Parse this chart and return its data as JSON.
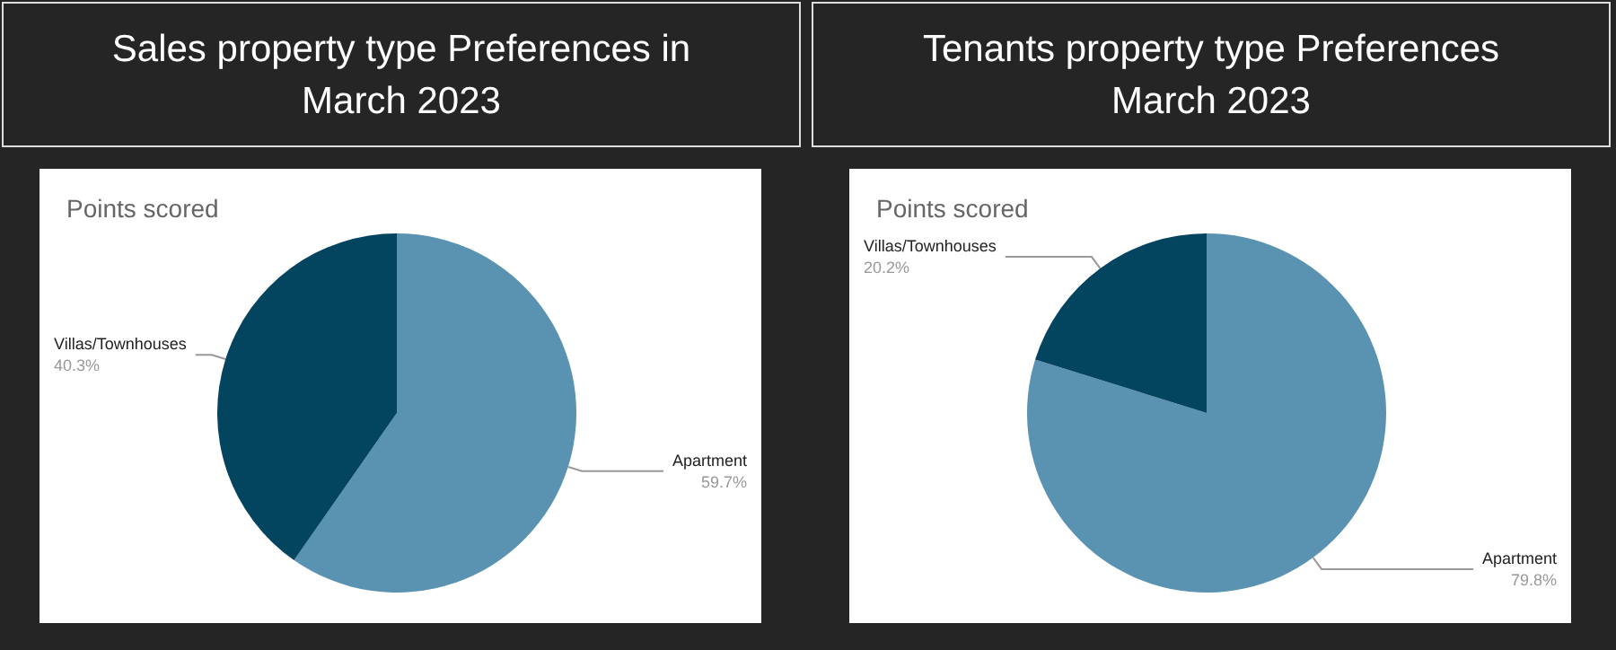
{
  "chart_data": [
    {
      "type": "pie",
      "title": "Sales property type Preferences in March 2023",
      "subtitle": "Points scored",
      "categories": [
        "Apartment",
        "Villas/Townhouses"
      ],
      "values": [
        59.7,
        40.3
      ],
      "value_labels": [
        "59.7%",
        "40.3%"
      ],
      "colors": [
        "#5a93b1",
        "#03445f"
      ],
      "legend": false
    },
    {
      "type": "pie",
      "title": "Tenants property type Preferences March 2023",
      "subtitle": "Points scored",
      "categories": [
        "Apartment",
        "Villas/Townhouses"
      ],
      "values": [
        79.8,
        20.2
      ],
      "value_labels": [
        "79.8%",
        "20.2%"
      ],
      "colors": [
        "#5a93b1",
        "#03445f"
      ],
      "legend": false
    }
  ]
}
